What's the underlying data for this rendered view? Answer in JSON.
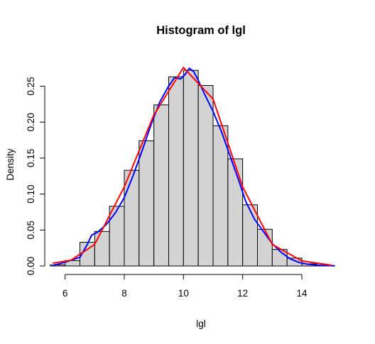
{
  "chart_data": {
    "type": "bar",
    "title": "Histogram of lgl",
    "xlabel": "lgl",
    "ylabel": "Density",
    "xlim": [
      5.6,
      15.2
    ],
    "ylim": [
      0,
      0.285
    ],
    "x_ticks": [
      "6",
      "8",
      "10",
      "12",
      "14"
    ],
    "y_ticks": [
      "0.00",
      "0.05",
      "0.10",
      "0.15",
      "0.20",
      "0.25"
    ],
    "bin_width": 0.5,
    "bins": [
      {
        "x0": 5.5,
        "x1": 6.0,
        "density": 0.0015
      },
      {
        "x0": 6.0,
        "x1": 6.5,
        "density": 0.0075
      },
      {
        "x0": 6.5,
        "x1": 7.0,
        "density": 0.033
      },
      {
        "x0": 7.0,
        "x1": 7.5,
        "density": 0.048
      },
      {
        "x0": 7.5,
        "x1": 8.0,
        "density": 0.083
      },
      {
        "x0": 8.0,
        "x1": 8.5,
        "density": 0.133
      },
      {
        "x0": 8.5,
        "x1": 9.0,
        "density": 0.174
      },
      {
        "x0": 9.0,
        "x1": 9.5,
        "density": 0.224
      },
      {
        "x0": 9.5,
        "x1": 10.0,
        "density": 0.263
      },
      {
        "x0": 10.0,
        "x1": 10.5,
        "density": 0.272
      },
      {
        "x0": 10.5,
        "x1": 11.0,
        "density": 0.251
      },
      {
        "x0": 11.0,
        "x1": 11.5,
        "density": 0.195
      },
      {
        "x0": 11.5,
        "x1": 12.0,
        "density": 0.149
      },
      {
        "x0": 12.0,
        "x1": 12.5,
        "density": 0.085
      },
      {
        "x0": 12.5,
        "x1": 13.0,
        "density": 0.051
      },
      {
        "x0": 13.0,
        "x1": 13.5,
        "density": 0.023
      },
      {
        "x0": 13.5,
        "x1": 14.0,
        "density": 0.011
      },
      {
        "x0": 14.0,
        "x1": 14.5,
        "density": 0.003
      },
      {
        "x0": 14.5,
        "x1": 15.0,
        "density": 0.001
      }
    ],
    "series": [
      {
        "color": "#0000ff",
        "x": [
          5.6,
          5.9,
          6.2,
          6.5,
          6.75,
          6.9,
          7.1,
          7.4,
          7.7,
          8.0,
          8.3,
          8.6,
          8.9,
          9.2,
          9.5,
          9.7,
          9.9,
          10.05,
          10.2,
          10.35,
          10.5,
          10.7,
          11.0,
          11.3,
          11.6,
          11.9,
          12.1,
          12.4,
          12.7,
          13.0,
          13.3,
          13.6,
          13.9,
          14.2,
          14.6,
          15.1
        ],
        "y": [
          0.001,
          0.004,
          0.008,
          0.012,
          0.03,
          0.043,
          0.047,
          0.058,
          0.074,
          0.095,
          0.126,
          0.16,
          0.196,
          0.228,
          0.25,
          0.262,
          0.26,
          0.266,
          0.275,
          0.27,
          0.258,
          0.24,
          0.215,
          0.185,
          0.15,
          0.115,
          0.09,
          0.065,
          0.048,
          0.031,
          0.019,
          0.01,
          0.005,
          0.0025,
          0.001,
          0.0003
        ]
      },
      {
        "color": "#ff0000",
        "x": [
          5.6,
          6.2,
          7.0,
          8.0,
          9.0,
          10.0,
          11.0,
          12.0,
          13.0,
          14.0,
          15.0
        ],
        "y": [
          0.004,
          0.008,
          0.03,
          0.11,
          0.21,
          0.276,
          0.232,
          0.11,
          0.03,
          0.007,
          0.001
        ]
      }
    ]
  }
}
